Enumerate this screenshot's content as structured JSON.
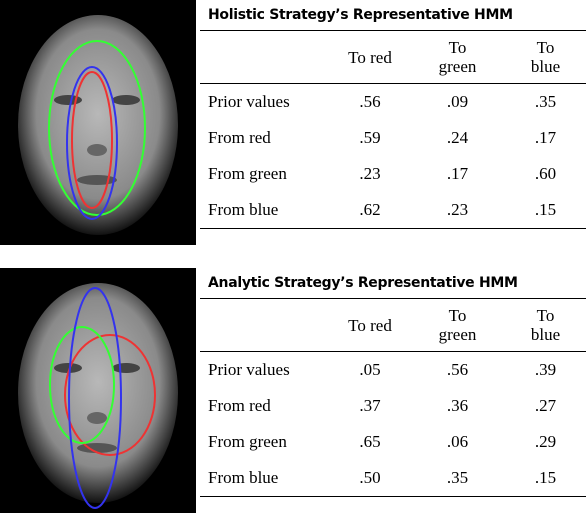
{
  "panels": [
    {
      "title": "Holistic Strategy’s Representative HMM",
      "columns": [
        "To red",
        "To green",
        "To blue"
      ],
      "rows": [
        [
          "Prior values",
          ".56",
          ".09",
          ".35"
        ],
        [
          "From red",
          ".59",
          ".24",
          ".17"
        ],
        [
          "From green",
          ".23",
          ".17",
          ".60"
        ],
        [
          "From blue",
          ".62",
          ".23",
          ".15"
        ]
      ]
    },
    {
      "title": "Analytic Strategy’s Representative HMM",
      "columns": [
        "To red",
        "To green",
        "To blue"
      ],
      "rows": [
        [
          "Prior values",
          ".05",
          ".56",
          ".39"
        ],
        [
          "From red",
          ".37",
          ".36",
          ".27"
        ],
        [
          "From green",
          ".65",
          ".06",
          ".29"
        ],
        [
          "From blue",
          ".50",
          ".35",
          ".15"
        ]
      ]
    }
  ]
}
